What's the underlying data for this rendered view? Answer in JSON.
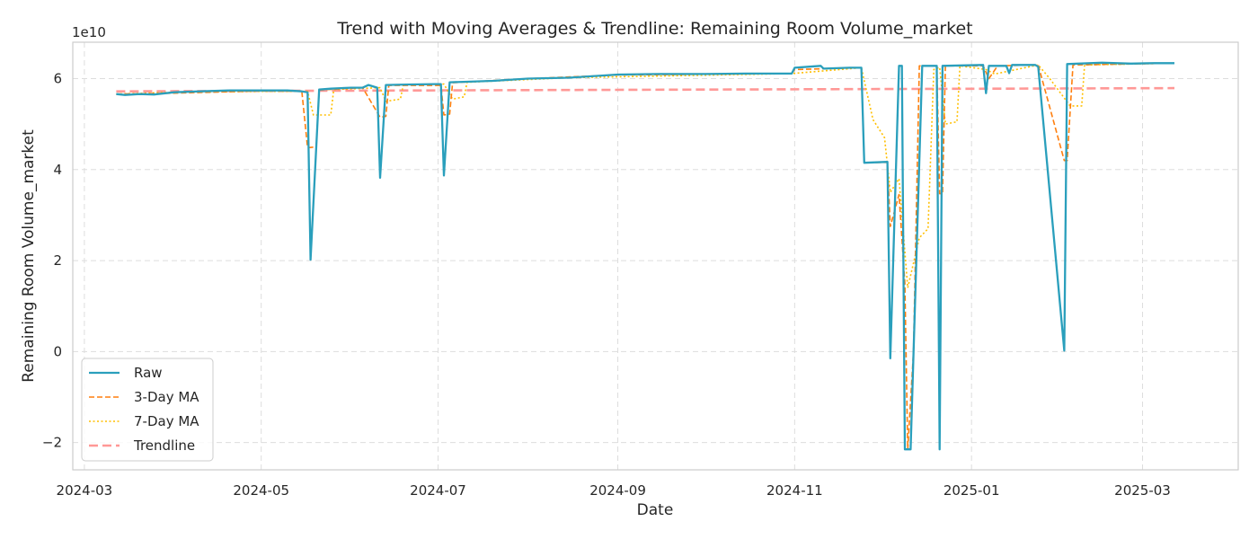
{
  "chart_data": {
    "type": "line",
    "title": "Trend with Moving Averages & Trendline: Remaining Room Volume_market",
    "xlabel": "Date",
    "ylabel": "Remaining Room Volume_market",
    "y_multiplier_label": "1e10",
    "y_unit": "×1e10",
    "grid": true,
    "legend_position": "lower-left",
    "xlim": [
      "2024-02-26",
      "2025-04-03"
    ],
    "ylim": [
      -2.6,
      6.8
    ],
    "x_ticks": [
      "2024-03-01",
      "2024-05-01",
      "2024-07-01",
      "2024-09-01",
      "2024-11-01",
      "2025-01-01",
      "2025-03-01"
    ],
    "x_tick_labels": [
      "2024-03",
      "2024-05",
      "2024-07",
      "2024-09",
      "2024-11",
      "2025-01",
      "2025-03"
    ],
    "y_ticks": [
      -2,
      0,
      2,
      4,
      6
    ],
    "y_tick_labels": [
      "−2",
      "0",
      "2",
      "4",
      "6"
    ],
    "series": [
      {
        "name": "Raw",
        "color": "#2a9fbc",
        "style": "solid",
        "points": [
          [
            "2024-03-12",
            5.66
          ],
          [
            "2024-03-15",
            5.64
          ],
          [
            "2024-03-20",
            5.66
          ],
          [
            "2024-03-25",
            5.65
          ],
          [
            "2024-04-01",
            5.7
          ],
          [
            "2024-04-10",
            5.72
          ],
          [
            "2024-04-20",
            5.74
          ],
          [
            "2024-05-01",
            5.74
          ],
          [
            "2024-05-10",
            5.74
          ],
          [
            "2024-05-15",
            5.72
          ],
          [
            "2024-05-17",
            5.7
          ],
          [
            "2024-05-18",
            2.02
          ],
          [
            "2024-05-21",
            5.76
          ],
          [
            "2024-05-25",
            5.78
          ],
          [
            "2024-06-01",
            5.8
          ],
          [
            "2024-06-05",
            5.8
          ],
          [
            "2024-06-07",
            5.86
          ],
          [
            "2024-06-10",
            5.8
          ],
          [
            "2024-06-11",
            3.82
          ],
          [
            "2024-06-13",
            5.86
          ],
          [
            "2024-06-20",
            5.87
          ],
          [
            "2024-06-30",
            5.88
          ],
          [
            "2024-07-02",
            5.88
          ],
          [
            "2024-07-03",
            3.87
          ],
          [
            "2024-07-05",
            5.92
          ],
          [
            "2024-07-20",
            5.95
          ],
          [
            "2024-08-01",
            6.0
          ],
          [
            "2024-08-15",
            6.02
          ],
          [
            "2024-09-01",
            6.09
          ],
          [
            "2024-09-15",
            6.1
          ],
          [
            "2024-10-01",
            6.1
          ],
          [
            "2024-10-15",
            6.11
          ],
          [
            "2024-10-31",
            6.11
          ],
          [
            "2024-11-01",
            6.24
          ],
          [
            "2024-11-10",
            6.28
          ],
          [
            "2024-11-11",
            6.22
          ],
          [
            "2024-11-20",
            6.24
          ],
          [
            "2024-11-24",
            6.24
          ],
          [
            "2024-11-25",
            4.15
          ],
          [
            "2024-12-03",
            4.17
          ],
          [
            "2024-12-04",
            -0.15
          ],
          [
            "2024-12-07",
            6.28
          ],
          [
            "2024-12-08",
            6.28
          ],
          [
            "2024-12-09",
            -2.15
          ],
          [
            "2024-12-11",
            -2.15
          ],
          [
            "2024-12-15",
            6.28
          ],
          [
            "2024-12-20",
            6.28
          ],
          [
            "2024-12-21",
            -2.15
          ],
          [
            "2024-12-22",
            6.28
          ],
          [
            "2025-01-05",
            6.3
          ],
          [
            "2025-01-06",
            5.68
          ],
          [
            "2025-01-07",
            6.28
          ],
          [
            "2025-01-13",
            6.28
          ],
          [
            "2025-01-14",
            6.12
          ],
          [
            "2025-01-15",
            6.3
          ],
          [
            "2025-01-23",
            6.3
          ],
          [
            "2025-01-24",
            6.26
          ],
          [
            "2025-02-02",
            0.02
          ],
          [
            "2025-02-03",
            6.32
          ],
          [
            "2025-02-15",
            6.35
          ],
          [
            "2025-02-25",
            6.33
          ],
          [
            "2025-03-05",
            6.34
          ],
          [
            "2025-03-12",
            6.34
          ]
        ]
      },
      {
        "name": "3-Day MA",
        "color": "#ff7f0e",
        "style": "dashed",
        "points": [
          [
            "2024-03-12",
            5.66
          ],
          [
            "2024-04-01",
            5.68
          ],
          [
            "2024-05-01",
            5.73
          ],
          [
            "2024-05-15",
            5.72
          ],
          [
            "2024-05-17",
            4.48
          ],
          [
            "2024-05-20",
            4.5
          ],
          [
            "2024-05-21",
            5.75
          ],
          [
            "2024-06-05",
            5.8
          ],
          [
            "2024-06-11",
            5.15
          ],
          [
            "2024-06-13",
            5.17
          ],
          [
            "2024-06-14",
            5.85
          ],
          [
            "2024-07-02",
            5.85
          ],
          [
            "2024-07-03",
            5.2
          ],
          [
            "2024-07-05",
            5.22
          ],
          [
            "2024-07-06",
            5.91
          ],
          [
            "2024-08-01",
            6.0
          ],
          [
            "2024-09-01",
            6.08
          ],
          [
            "2024-10-31",
            6.11
          ],
          [
            "2024-11-01",
            6.2
          ],
          [
            "2024-11-24",
            6.24
          ],
          [
            "2024-11-25",
            4.15
          ],
          [
            "2024-12-03",
            4.16
          ],
          [
            "2024-12-04",
            2.75
          ],
          [
            "2024-12-07",
            3.45
          ],
          [
            "2024-12-09",
            1.5
          ],
          [
            "2024-12-10",
            -2.15
          ],
          [
            "2024-12-12",
            0.0
          ],
          [
            "2024-12-14",
            6.28
          ],
          [
            "2024-12-20",
            6.28
          ],
          [
            "2024-12-21",
            3.47
          ],
          [
            "2024-12-22",
            3.47
          ],
          [
            "2024-12-23",
            6.28
          ],
          [
            "2025-01-05",
            6.28
          ],
          [
            "2025-01-07",
            6.0
          ],
          [
            "2025-01-10",
            6.28
          ],
          [
            "2025-01-24",
            6.3
          ],
          [
            "2025-02-02",
            4.2
          ],
          [
            "2025-02-03",
            4.2
          ],
          [
            "2025-02-05",
            6.3
          ],
          [
            "2025-03-12",
            6.34
          ]
        ]
      },
      {
        "name": "7-Day MA",
        "color": "#ffbf00",
        "style": "dotted",
        "points": [
          [
            "2024-03-12",
            5.66
          ],
          [
            "2024-04-01",
            5.7
          ],
          [
            "2024-05-01",
            5.72
          ],
          [
            "2024-05-17",
            5.72
          ],
          [
            "2024-05-19",
            5.2
          ],
          [
            "2024-05-25",
            5.2
          ],
          [
            "2024-05-26",
            5.76
          ],
          [
            "2024-06-11",
            5.8
          ],
          [
            "2024-06-13",
            5.5
          ],
          [
            "2024-06-18",
            5.55
          ],
          [
            "2024-06-19",
            5.86
          ],
          [
            "2024-07-03",
            5.88
          ],
          [
            "2024-07-06",
            5.55
          ],
          [
            "2024-07-10",
            5.6
          ],
          [
            "2024-07-11",
            5.92
          ],
          [
            "2024-08-15",
            6.02
          ],
          [
            "2024-10-31",
            6.11
          ],
          [
            "2024-11-24",
            6.24
          ],
          [
            "2024-11-28",
            5.1
          ],
          [
            "2024-12-02",
            4.7
          ],
          [
            "2024-12-04",
            3.5
          ],
          [
            "2024-12-07",
            3.8
          ],
          [
            "2024-12-10",
            1.4
          ],
          [
            "2024-12-14",
            2.5
          ],
          [
            "2024-12-17",
            2.7
          ],
          [
            "2024-12-19",
            6.2
          ],
          [
            "2024-12-21",
            6.25
          ],
          [
            "2024-12-23",
            5.0
          ],
          [
            "2024-12-27",
            5.05
          ],
          [
            "2024-12-28",
            6.28
          ],
          [
            "2025-01-06",
            6.2
          ],
          [
            "2025-01-09",
            6.1
          ],
          [
            "2025-01-24",
            6.3
          ],
          [
            "2025-01-28",
            6.0
          ],
          [
            "2025-02-04",
            5.4
          ],
          [
            "2025-02-08",
            5.4
          ],
          [
            "2025-02-09",
            6.3
          ],
          [
            "2025-03-12",
            6.34
          ]
        ]
      },
      {
        "name": "Trendline",
        "color": "#ff9896",
        "style": "longdash",
        "points": [
          [
            "2024-03-12",
            5.72
          ],
          [
            "2025-03-12",
            5.79
          ]
        ]
      }
    ],
    "legend": [
      "Raw",
      "3-Day MA",
      "7-Day MA",
      "Trendline"
    ]
  }
}
